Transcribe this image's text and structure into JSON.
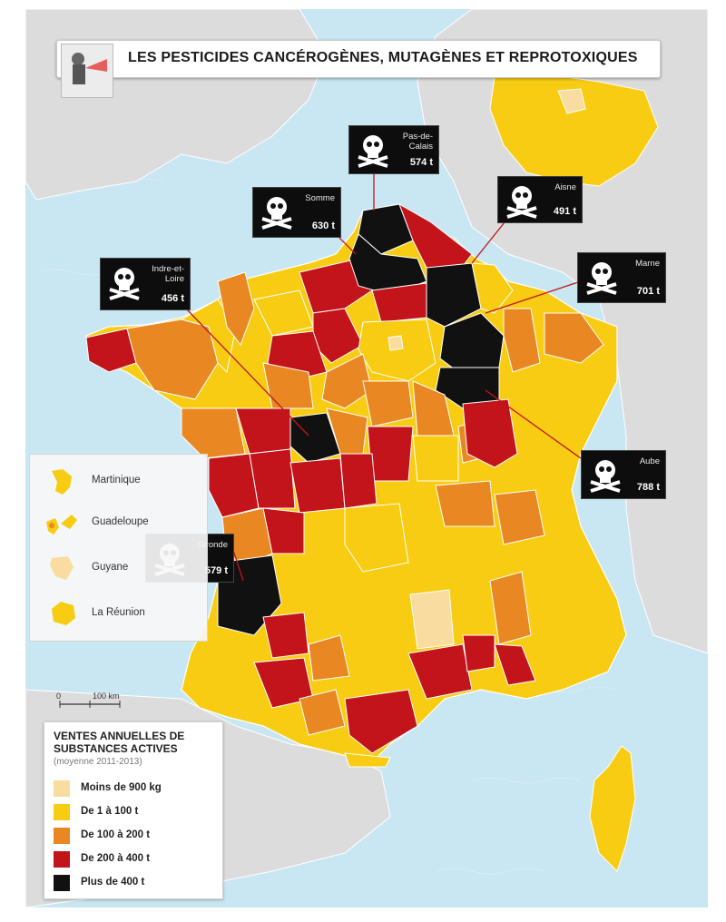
{
  "title": "LES PESTICIDES CANCÉROGÈNES, MUTAGÈNES ET REPROTOXIQUES",
  "colors": {
    "sea": "#c9e6f3",
    "land_other": "#dcdcdc",
    "moins_900kg": "#f8dca0",
    "de_1_a_100": "#f7cc13",
    "de_100_a_200": "#e98822",
    "de_200_a_400": "#c3141b",
    "plus_de_400": "#111111"
  },
  "departements_plus_400": [
    {
      "name": "Pas-de-\nCalais",
      "tonnes": "574 t"
    },
    {
      "name": "Somme",
      "tonnes": "630 t"
    },
    {
      "name": "Aisne",
      "tonnes": "491 t"
    },
    {
      "name": "Indre-et-\nLoire",
      "tonnes": "456 t"
    },
    {
      "name": "Marne",
      "tonnes": "701 t"
    },
    {
      "name": "Aube",
      "tonnes": "788 t"
    },
    {
      "name": "Gironde",
      "tonnes": "579 t"
    }
  ],
  "outre_mer": [
    "Martinique",
    "Guadeloupe",
    "Guyane",
    "La Réunion"
  ],
  "scale": {
    "zero": "0",
    "km": "100 km"
  },
  "legend": {
    "title": "VENTES ANNUELLES DE\nSUBSTANCES ACTIVES",
    "subtitle": "(moyenne 2011-2013)",
    "items": [
      "Moins de 900 kg",
      "De 1 à 100 t",
      "De 100 à 200 t",
      "De 200 à 400 t",
      "Plus de 400 t"
    ]
  }
}
